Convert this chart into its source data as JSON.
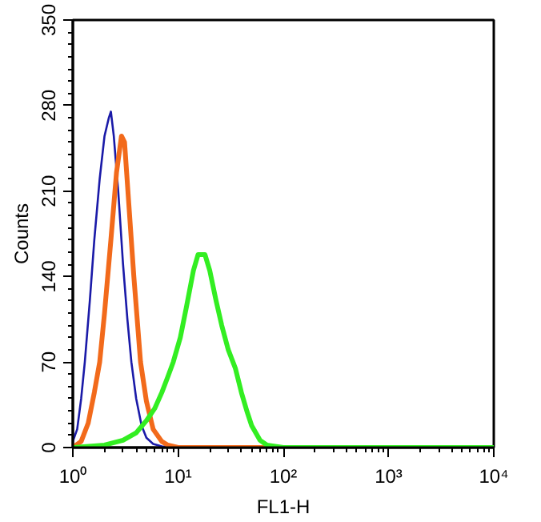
{
  "chart_data": {
    "type": "line",
    "xlabel": "FL1-H",
    "ylabel": "Counts",
    "log": "x",
    "xlim": [
      1,
      10000
    ],
    "ylim": [
      0,
      350
    ],
    "xticks": [
      {
        "value": 1,
        "label": "10⁰"
      },
      {
        "value": 10,
        "label": "10¹"
      },
      {
        "value": 100,
        "label": "10²"
      },
      {
        "value": 1000,
        "label": "10³"
      },
      {
        "value": 10000,
        "label": "10⁴"
      }
    ],
    "yticks": [
      0,
      70,
      140,
      210,
      280,
      350
    ],
    "grid": false,
    "series": [
      {
        "color": "#1a1aa8",
        "x": [
          1.0,
          1.1,
          1.2,
          1.3,
          1.45,
          1.6,
          1.8,
          2.0,
          2.2,
          2.3,
          2.45,
          2.7,
          3.0,
          3.3,
          3.6,
          4.0,
          4.5,
          5.0,
          5.8,
          7,
          10
        ],
        "values": [
          5,
          15,
          40,
          70,
          120,
          170,
          220,
          255,
          270,
          275,
          255,
          210,
          150,
          105,
          70,
          40,
          18,
          8,
          3,
          1,
          0
        ]
      },
      {
        "color": "#f26a1b",
        "x": [
          1.0,
          1.2,
          1.4,
          1.6,
          1.8,
          2.0,
          2.3,
          2.6,
          2.9,
          3.1,
          3.4,
          3.8,
          4.4,
          5.0,
          5.8,
          7,
          8,
          10,
          80
        ],
        "values": [
          0,
          5,
          20,
          45,
          70,
          110,
          170,
          225,
          255,
          250,
          200,
          140,
          70,
          38,
          15,
          5,
          2,
          0,
          0
        ]
      },
      {
        "color": "#33ee22",
        "x": [
          1.0,
          2.0,
          3.0,
          4.0,
          5.0,
          6.0,
          7.0,
          8.0,
          9.0,
          10.5,
          12,
          14,
          15.5,
          18,
          20,
          23,
          26,
          30,
          35,
          40,
          45,
          50,
          60,
          70,
          100,
          1000,
          10000
        ],
        "values": [
          0,
          2,
          6,
          12,
          22,
          32,
          45,
          58,
          70,
          90,
          115,
          145,
          158,
          158,
          145,
          120,
          100,
          80,
          65,
          45,
          30,
          18,
          6,
          2,
          0,
          0,
          0
        ]
      }
    ]
  }
}
